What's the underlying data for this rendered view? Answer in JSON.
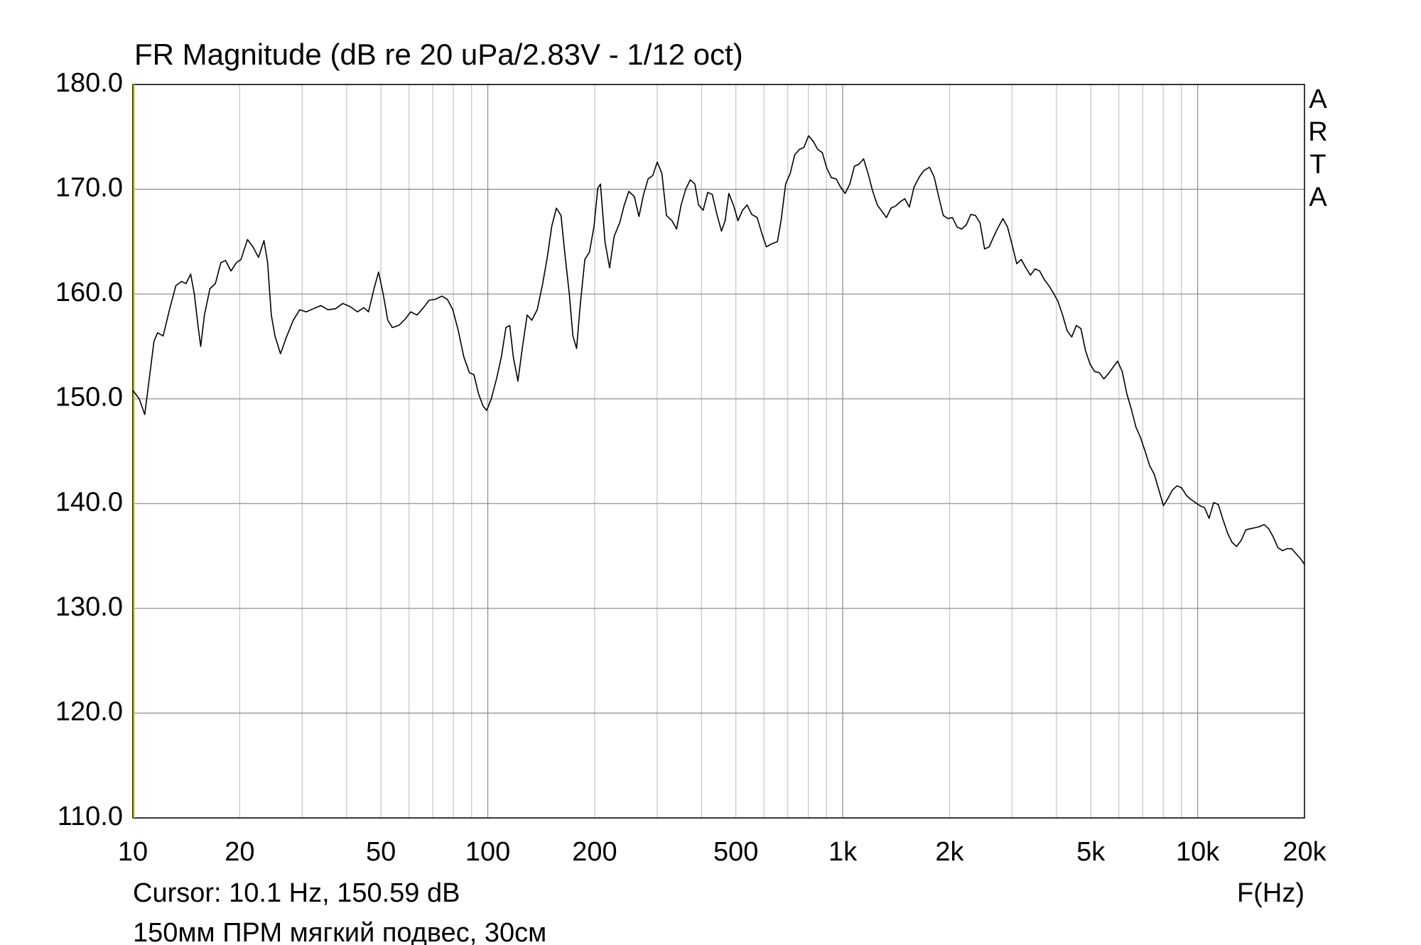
{
  "chart_data": {
    "type": "line",
    "title": "FR Magnitude (dB re 20 uPa/2.83V - 1/12 oct)",
    "side_label": "ARTA",
    "x_label": "F(Hz)",
    "cursor_text": "Cursor: 10.1 Hz, 150.59 dB",
    "note": "150мм ПРМ мягкий подвес, 30см",
    "xscale": "log",
    "grid": true,
    "color": "#000000",
    "xlim": [
      10,
      20000
    ],
    "xticks": [
      10,
      20,
      50,
      100,
      200,
      500,
      {
        "value": 1000,
        "label": "1k"
      },
      {
        "value": 2000,
        "label": "2k"
      },
      {
        "value": 5000,
        "label": "5k"
      },
      {
        "value": 10000,
        "label": "10k"
      },
      {
        "value": 20000,
        "label": "20k"
      }
    ],
    "xminor": [
      30,
      40,
      60,
      70,
      80,
      90,
      300,
      400,
      600,
      700,
      800,
      900,
      3000,
      4000,
      6000,
      7000,
      8000,
      9000
    ],
    "ylim": [
      110,
      180
    ],
    "yticks": [
      {
        "value": 110,
        "label": "110.0"
      },
      {
        "value": 120,
        "label": "120.0"
      },
      {
        "value": 130,
        "label": "130.0"
      },
      {
        "value": 140,
        "label": "140.0"
      },
      {
        "value": 150,
        "label": "150.0"
      },
      {
        "value": 160,
        "label": "160.0"
      },
      {
        "value": 170,
        "label": "170.0"
      },
      {
        "value": 180,
        "label": "180.0"
      }
    ],
    "x": [
      10,
      10.42,
      10.8,
      11.13,
      11.47,
      11.74,
      12.17,
      12.68,
      13.22,
      13.71,
      14.12,
      14.55,
      14.9,
      15.26,
      15.53,
      15.91,
      16.48,
      17.08,
      17.7,
      18.24,
      18.9,
      19.58,
      20.17,
      21.03,
      21.8,
      22.59,
      23.41,
      23.97,
      24.55,
      25.14,
      26.06,
      27.16,
      28.31,
      29.52,
      30.78,
      32.27,
      33.84,
      35.49,
      37.22,
      39.03,
      40.94,
      42.94,
      44.77,
      46.12,
      47.79,
      49.24,
      50.73,
      52.27,
      53.83,
      56.12,
      58.5,
      60.63,
      63.19,
      65.89,
      68.28,
      71.18,
      74.21,
      76.91,
      79.71,
      82.6,
      85.6,
      88.72,
      91.4,
      94.15,
      97,
      99.3,
      102.3,
      106,
      109.2,
      112.5,
      115.3,
      118,
      121.6,
      125.3,
      129.1,
      133,
      137.8,
      142.8,
      147.1,
      151.5,
      156.1,
      160.8,
      164.7,
      169.7,
      173.7,
      177.9,
      182.2,
      187.7,
      193.4,
      199.3,
      204.1,
      207.7,
      213.9,
      220.4,
      227,
      235.3,
      242.4,
      249.7,
      258.8,
      266.6,
      274.7,
      283,
      291.5,
      300.3,
      309.4,
      318.7,
      330.3,
      340.3,
      350.5,
      361.1,
      372,
      383.2,
      392.5,
      404.4,
      416.6,
      429.1,
      442.1,
      455.4,
      466.4,
      477.7,
      492.1,
      506.9,
      522.2,
      537.9,
      554.2,
      574.1,
      591.6,
      609.4,
      631.6,
      654.6,
      670.3,
      690.5,
      711.2,
      732.7,
      754.9,
      777.6,
      801.1,
      825.3,
      850.2,
      875.8,
      902.2,
      929.4,
      957.6,
      986.5,
      1016,
      1047,
      1079,
      1111,
      1145,
      1179,
      1215,
      1252,
      1289,
      1328,
      1368,
      1409,
      1452,
      1496,
      1541,
      1588,
      1645,
      1695,
      1756,
      1809,
      1864,
      1920,
      1978,
      2038,
      2100,
      2163,
      2229,
      2296,
      2365,
      2437,
      2510,
      2586,
      2665,
      2745,
      2828,
      2913,
      3001,
      3092,
      3185,
      3281,
      3381,
      3483,
      3588,
      3696,
      3808,
      3923,
      4041,
      4164,
      4289,
      4419,
      4552,
      4690,
      4831,
      4977,
      5128,
      5282,
      5442,
      5606,
      5775,
      5950,
      6130,
      6315,
      6505,
      6702,
      6904,
      7112,
      7327,
      7548,
      7776,
      8011,
      8247,
      8495,
      8750,
      9016,
      9287,
      9566,
      9855,
      10150,
      10460,
      10770,
      11100,
      11440,
      11780,
      12140,
      12500,
      12880,
      13270,
      13670,
      14080,
      14510,
      14940,
      15390,
      15860,
      16340,
      16830,
      17340,
      17870,
      18400,
      18960,
      19530,
      20000
    ],
    "values": [
      150.8,
      150,
      148.5,
      152,
      155.5,
      156.3,
      156,
      158.5,
      160.8,
      161.2,
      161,
      161.9,
      160,
      157,
      155,
      158,
      160.5,
      161,
      163,
      163.2,
      162.2,
      163,
      163.3,
      165.2,
      164.5,
      163.5,
      165.1,
      163,
      158,
      156,
      154.3,
      156,
      157.5,
      158.5,
      158.3,
      158.6,
      158.9,
      158.5,
      158.6,
      159.1,
      158.8,
      158.3,
      158.7,
      158.3,
      160.5,
      162.1,
      160,
      157.5,
      156.8,
      157,
      157.6,
      158.3,
      158,
      158.7,
      159.4,
      159.5,
      159.8,
      159.5,
      158.5,
      156.5,
      154,
      152.5,
      152.3,
      150.5,
      149.3,
      148.9,
      150,
      152,
      154,
      156.8,
      157,
      154,
      151.7,
      155,
      158,
      157.5,
      158.5,
      161,
      163.5,
      166.5,
      168.2,
      167.5,
      164,
      160,
      156,
      154.8,
      159,
      163.3,
      164,
      166.5,
      170.1,
      170.5,
      165,
      162.5,
      165.5,
      166.8,
      168.5,
      169.8,
      169.3,
      167.4,
      169.5,
      171,
      171.3,
      172.6,
      171.5,
      167.5,
      167,
      166.2,
      168.5,
      170,
      170.9,
      170.5,
      168.5,
      168,
      169.7,
      169.5,
      167.6,
      166,
      167,
      169.6,
      168.5,
      167,
      168,
      168.5,
      167.6,
      167.3,
      165.8,
      164.5,
      164.8,
      165,
      167,
      170.5,
      171.5,
      173.3,
      173.8,
      174,
      175.1,
      174.6,
      173.8,
      173.5,
      172,
      171.1,
      171,
      170.2,
      169.6,
      170.5,
      172.2,
      172.4,
      172.9,
      171.5,
      169.8,
      168.5,
      167.9,
      167.3,
      168.2,
      168.4,
      168.8,
      169.1,
      168.3,
      170.2,
      171.2,
      171.8,
      172.1,
      171.2,
      169.3,
      167.5,
      167.2,
      167.3,
      166.4,
      166.2,
      166.6,
      167.6,
      167.5,
      166.8,
      164.3,
      164.5,
      165.5,
      166.4,
      167.2,
      166.4,
      164.7,
      162.9,
      163.3,
      162.5,
      161.8,
      162.4,
      162.2,
      161.4,
      160.8,
      160.1,
      159.3,
      158,
      156.5,
      155.9,
      157,
      156.7,
      154.6,
      153.3,
      152.6,
      152.5,
      151.9,
      152.4,
      153,
      153.6,
      152.6,
      150.5,
      149,
      147.3,
      146.3,
      145,
      143.6,
      142.8,
      141.3,
      139.8,
      140.5,
      141.3,
      141.7,
      141.5,
      140.8,
      140.4,
      140.1,
      139.8,
      139.6,
      138.6,
      140.1,
      139.9,
      138.5,
      137.2,
      136.3,
      135.9,
      136.5,
      137.5,
      137.6,
      137.7,
      137.8,
      138,
      137.6,
      136.8,
      135.8,
      135.5,
      135.7,
      135.7,
      135.2,
      134.7,
      134.2
    ]
  }
}
